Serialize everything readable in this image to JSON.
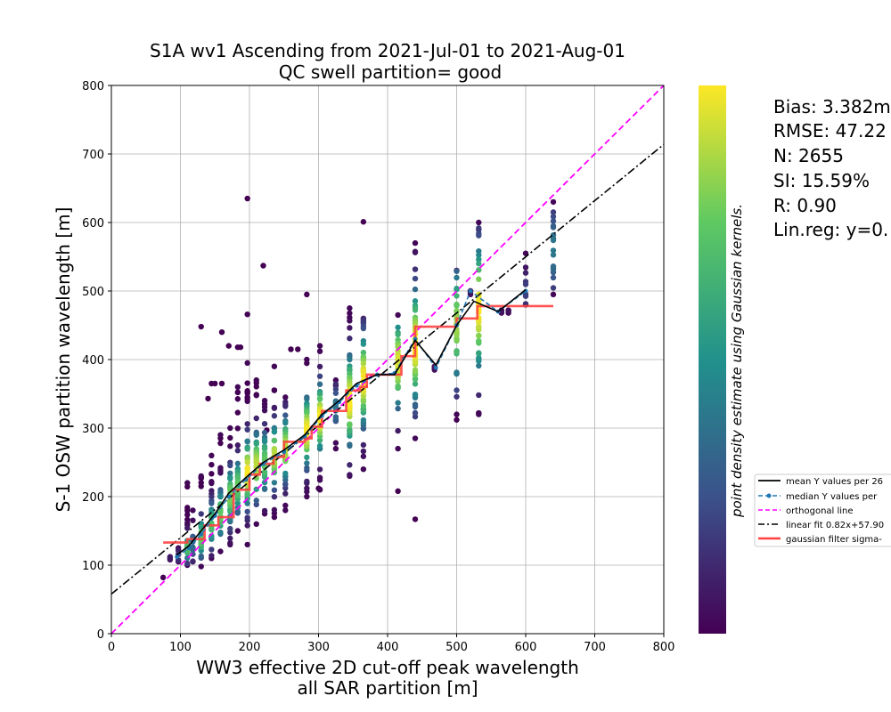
{
  "chart_data": {
    "type": "scatter",
    "title_line1": "S1A wv1 Ascending from 2021-Jul-01 to 2021-Aug-01",
    "title_line2": "QC swell partition= good",
    "xlabel_line1": "WW3 effective 2D cut-off peak wavelength",
    "xlabel_line2": "all SAR partition [m]",
    "ylabel": "S-1 OSW partition wavelength [m]",
    "xlim": [
      0,
      800
    ],
    "ylim": [
      0,
      800
    ],
    "xticks": [
      "0",
      "100",
      "200",
      "300",
      "400",
      "500",
      "600",
      "700",
      "800"
    ],
    "yticks": [
      "0",
      "100",
      "200",
      "300",
      "400",
      "500",
      "600",
      "700",
      "800"
    ],
    "grid": true,
    "colorbar_label": "point density estimate using Gaussian kernels.",
    "colormap": [
      "#440154",
      "#3b528b",
      "#21918c",
      "#5ec962",
      "#fde725"
    ],
    "stats": [
      "Bias: 3.382m",
      "RMSE: 47.22",
      "N: 2655",
      "SI: 15.59%",
      "R: 0.90",
      "Lin.reg: y=0."
    ],
    "legend_position": "lower-right",
    "legend": [
      {
        "label": "mean Y values per 26",
        "color": "#000000",
        "style": "solid"
      },
      {
        "label": "median Y values per",
        "color": "#1f77b4",
        "style": "dash-dot-marker"
      },
      {
        "label": "orthogonal line",
        "color": "#ff00ff",
        "style": "dashed"
      },
      {
        "label": "linear fit 0.82x+57.90",
        "color": "#000000",
        "style": "dashdot"
      },
      {
        "label": "gaussian filter sigma-",
        "color": "#ff4040",
        "style": "thick"
      }
    ],
    "orthogonal_line": {
      "x": [
        0,
        800
      ],
      "y": [
        0,
        800
      ],
      "color": "#ff00ff"
    },
    "linear_fit": {
      "slope": 0.82,
      "intercept": 57.9,
      "x": [
        0,
        800
      ],
      "color": "#000000"
    },
    "mean_line": {
      "x": [
        95,
        112,
        130,
        150,
        170,
        195,
        220,
        250,
        280,
        305,
        330,
        355,
        385,
        410,
        440,
        470,
        500,
        525,
        560,
        600
      ],
      "y": [
        115,
        128,
        150,
        175,
        205,
        228,
        250,
        268,
        290,
        320,
        340,
        365,
        378,
        378,
        428,
        392,
        450,
        485,
        470,
        502
      ],
      "color": "#000000"
    },
    "median_line": {
      "x": [
        95,
        112,
        130,
        150,
        170,
        195,
        220,
        250,
        280,
        305,
        330,
        355,
        385,
        410,
        440,
        470,
        500,
        520,
        560,
        600
      ],
      "y": [
        112,
        125,
        145,
        172,
        200,
        225,
        248,
        265,
        288,
        318,
        338,
        362,
        378,
        380,
        430,
        388,
        450,
        500,
        470,
        500
      ],
      "color": "#1f77b4"
    },
    "gaussian_steps": [
      {
        "x0": 75,
        "x1": 110,
        "y": 133
      },
      {
        "x0": 110,
        "x1": 135,
        "y": 138
      },
      {
        "x0": 135,
        "x1": 155,
        "y": 158
      },
      {
        "x0": 155,
        "x1": 177,
        "y": 170
      },
      {
        "x0": 177,
        "x1": 200,
        "y": 210
      },
      {
        "x0": 200,
        "x1": 215,
        "y": 232
      },
      {
        "x0": 215,
        "x1": 235,
        "y": 248
      },
      {
        "x0": 235,
        "x1": 250,
        "y": 258
      },
      {
        "x0": 250,
        "x1": 280,
        "y": 280
      },
      {
        "x0": 280,
        "x1": 290,
        "y": 285
      },
      {
        "x0": 290,
        "x1": 305,
        "y": 302
      },
      {
        "x0": 305,
        "x1": 340,
        "y": 325
      },
      {
        "x0": 340,
        "x1": 360,
        "y": 355
      },
      {
        "x0": 360,
        "x1": 370,
        "y": 360
      },
      {
        "x0": 370,
        "x1": 420,
        "y": 378
      },
      {
        "x0": 420,
        "x1": 440,
        "y": 405
      },
      {
        "x0": 440,
        "x1": 500,
        "y": 448
      },
      {
        "x0": 500,
        "x1": 530,
        "y": 460
      },
      {
        "x0": 530,
        "x1": 640,
        "y": 478
      }
    ],
    "columns": [
      {
        "x": 85,
        "ymin": 108,
        "ymax": 112,
        "peak": 110,
        "spread": 5,
        "n": 3
      },
      {
        "x": 97,
        "ymin": 105,
        "ymax": 125,
        "peak": 112,
        "spread": 8,
        "n": 6
      },
      {
        "x": 110,
        "ymin": 100,
        "ymax": 220,
        "peak": 125,
        "spread": 12,
        "n": 28
      },
      {
        "x": 118,
        "ymin": 105,
        "ymax": 180,
        "peak": 130,
        "spread": 15,
        "n": 14
      },
      {
        "x": 130,
        "ymin": 98,
        "ymax": 230,
        "peak": 140,
        "spread": 18,
        "n": 30
      },
      {
        "x": 145,
        "ymin": 110,
        "ymax": 260,
        "peak": 160,
        "spread": 20,
        "n": 28
      },
      {
        "x": 158,
        "ymin": 120,
        "ymax": 290,
        "peak": 175,
        "spread": 22,
        "n": 30
      },
      {
        "x": 172,
        "ymin": 130,
        "ymax": 300,
        "peak": 200,
        "spread": 25,
        "n": 32
      },
      {
        "x": 183,
        "ymin": 150,
        "ymax": 360,
        "peak": 215,
        "spread": 25,
        "n": 30
      },
      {
        "x": 197,
        "ymin": 130,
        "ymax": 395,
        "peak": 235,
        "spread": 30,
        "n": 44
      },
      {
        "x": 210,
        "ymin": 160,
        "ymax": 370,
        "peak": 245,
        "spread": 30,
        "n": 36
      },
      {
        "x": 222,
        "ymin": 175,
        "ymax": 340,
        "peak": 250,
        "spread": 28,
        "n": 30
      },
      {
        "x": 236,
        "ymin": 170,
        "ymax": 390,
        "peak": 260,
        "spread": 28,
        "n": 36
      },
      {
        "x": 252,
        "ymin": 180,
        "ymax": 345,
        "peak": 270,
        "spread": 28,
        "n": 36
      },
      {
        "x": 283,
        "ymin": 200,
        "ymax": 400,
        "peak": 295,
        "spread": 30,
        "n": 50
      },
      {
        "x": 302,
        "ymin": 210,
        "ymax": 420,
        "peak": 315,
        "spread": 30,
        "n": 48
      },
      {
        "x": 325,
        "ymin": 270,
        "ymax": 370,
        "peak": 330,
        "spread": 20,
        "n": 16
      },
      {
        "x": 345,
        "ymin": 230,
        "ymax": 475,
        "peak": 340,
        "spread": 40,
        "n": 50
      },
      {
        "x": 365,
        "ymin": 240,
        "ymax": 460,
        "peak": 370,
        "spread": 40,
        "n": 48
      },
      {
        "x": 415,
        "ymin": 270,
        "ymax": 465,
        "peak": 395,
        "spread": 40,
        "n": 38
      },
      {
        "x": 440,
        "ymin": 285,
        "ymax": 570,
        "peak": 420,
        "spread": 50,
        "n": 52
      },
      {
        "x": 468,
        "ymin": 385,
        "ymax": 390,
        "peak": 388,
        "spread": 3,
        "n": 2
      },
      {
        "x": 500,
        "ymin": 320,
        "ymax": 530,
        "peak": 450,
        "spread": 50,
        "n": 34
      },
      {
        "x": 520,
        "ymin": 495,
        "ymax": 500,
        "peak": 498,
        "spread": 3,
        "n": 2
      },
      {
        "x": 532,
        "ymin": 320,
        "ymax": 600,
        "peak": 475,
        "spread": 55,
        "n": 42
      },
      {
        "x": 565,
        "ymin": 468,
        "ymax": 472,
        "peak": 470,
        "spread": 3,
        "n": 2
      },
      {
        "x": 575,
        "ymin": 468,
        "ymax": 472,
        "peak": 470,
        "spread": 3,
        "n": 2
      },
      {
        "x": 600,
        "ymin": 480,
        "ymax": 555,
        "peak": 500,
        "spread": 20,
        "n": 8
      },
      {
        "x": 640,
        "ymin": 495,
        "ymax": 630,
        "peak": 560,
        "spread": 40,
        "n": 16
      }
    ],
    "outliers": [
      {
        "x": 75,
        "y": 82
      },
      {
        "x": 197,
        "y": 635
      },
      {
        "x": 220,
        "y": 537
      },
      {
        "x": 365,
        "y": 601
      },
      {
        "x": 440,
        "y": 167
      },
      {
        "x": 283,
        "y": 495
      },
      {
        "x": 197,
        "y": 466
      },
      {
        "x": 130,
        "y": 448
      },
      {
        "x": 160,
        "y": 440
      },
      {
        "x": 170,
        "y": 420
      },
      {
        "x": 183,
        "y": 418
      },
      {
        "x": 187,
        "y": 418
      },
      {
        "x": 260,
        "y": 415
      },
      {
        "x": 270,
        "y": 415
      },
      {
        "x": 225,
        "y": 297
      },
      {
        "x": 150,
        "y": 365
      },
      {
        "x": 140,
        "y": 343
      },
      {
        "x": 145,
        "y": 365
      },
      {
        "x": 160,
        "y": 365
      },
      {
        "x": 300,
        "y": 212
      },
      {
        "x": 325,
        "y": 362
      },
      {
        "x": 415,
        "y": 208
      },
      {
        "x": 500,
        "y": 312
      },
      {
        "x": 532,
        "y": 322
      }
    ]
  }
}
